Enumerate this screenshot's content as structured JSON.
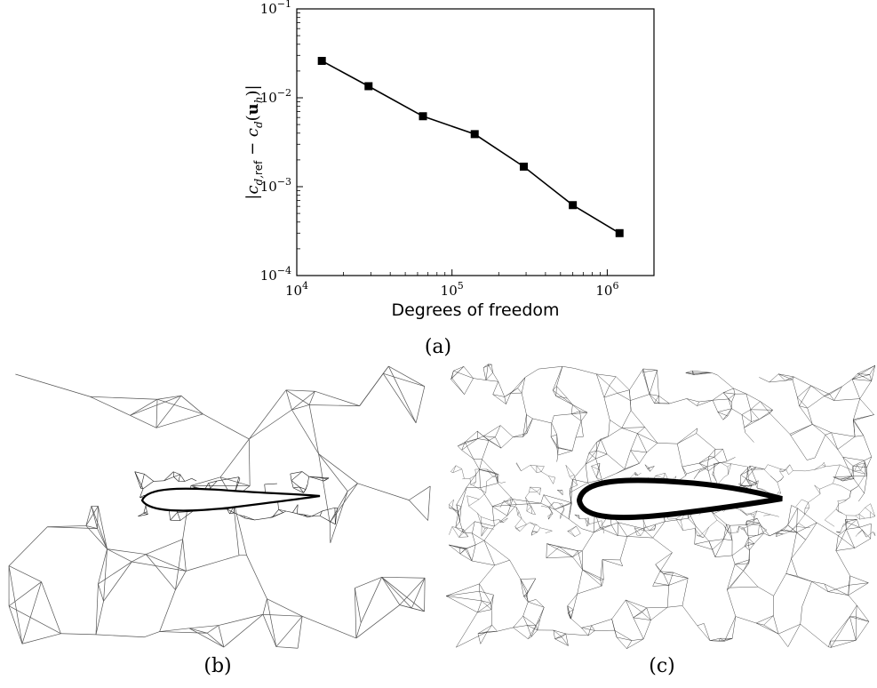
{
  "chart_data": {
    "type": "line",
    "x_scale": "log",
    "y_scale": "log",
    "xlim": [
      10000,
      2000000
    ],
    "ylim": [
      0.0001,
      0.1
    ],
    "x_ticks": [
      "10^4",
      "10^5",
      "10^6"
    ],
    "y_ticks": [
      "10^-4",
      "10^-3",
      "10^-2",
      "10^-1"
    ],
    "xlabel": "Degrees of freedom",
    "ylabel": "|c_d,ref − c_d(u_h)|",
    "grid": false,
    "marker": "square",
    "series": [
      {
        "x": [
          14500,
          29000,
          65000,
          140000,
          290000,
          600000,
          1200000
        ],
        "y": [
          0.026,
          0.0135,
          0.0062,
          0.0039,
          0.00168,
          0.00062,
          0.0003
        ]
      }
    ],
    "ticks": {
      "x": [
        {
          "base": "10",
          "exp": "4"
        },
        {
          "base": "10",
          "exp": "5"
        },
        {
          "base": "10",
          "exp": "6"
        }
      ],
      "y": [
        {
          "base": "10",
          "exp": "−4"
        },
        {
          "base": "10",
          "exp": "−3"
        },
        {
          "base": "10",
          "exp": "−2"
        },
        {
          "base": "10",
          "exp": "−1"
        }
      ]
    }
  },
  "ylabel_parts": {
    "c": "c",
    "sub_d": "d,",
    "sub_ref": "ref",
    "minus": " − ",
    "c2": "c",
    "sub_d2": "d",
    "open": "(",
    "u": "u",
    "sub_h": "h",
    "close": ")",
    "bar": "|"
  },
  "captions": {
    "a": "(a)",
    "b": "(b)",
    "c": "(c)"
  },
  "mesh_b": {
    "description_free": true
  },
  "mesh_c": {
    "description_free": true
  }
}
